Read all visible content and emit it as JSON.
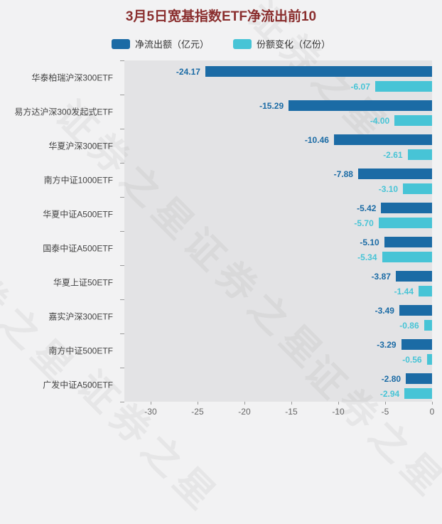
{
  "title": "3月5日宽基指数ETF净流出前10",
  "watermark": "证券之星",
  "legend": [
    {
      "label": "净流出额（亿元）",
      "color": "#1b6ba5"
    },
    {
      "label": "份额变化（亿份）",
      "color": "#47c4d6"
    }
  ],
  "chart_data": {
    "type": "bar",
    "orientation": "horizontal",
    "title": "3月5日宽基指数ETF净流出前10",
    "categories": [
      "华泰柏瑞沪深300ETF",
      "易方达沪深300发起式ETF",
      "华夏沪深300ETF",
      "南方中证1000ETF",
      "华夏中证A500ETF",
      "国泰中证A500ETF",
      "华夏上证50ETF",
      "嘉实沪深300ETF",
      "南方中证500ETF",
      "广发中证A500ETF"
    ],
    "series": [
      {
        "name": "净流出额（亿元）",
        "color": "#1b6ba5",
        "values": [
          -24.17,
          -15.29,
          -10.46,
          -7.88,
          -5.42,
          -5.1,
          -3.87,
          -3.49,
          -3.29,
          -2.8
        ]
      },
      {
        "name": "份额变化（亿份）",
        "color": "#47c4d6",
        "values": [
          -6.07,
          -4.0,
          -2.61,
          -3.1,
          -5.7,
          -5.34,
          -1.44,
          -0.86,
          -0.56,
          -2.94
        ]
      }
    ],
    "x_ticks": [
      -30,
      -25,
      -20,
      -15,
      -10,
      -5,
      0
    ],
    "xlim": [
      -32.8,
      0
    ],
    "grid": false,
    "legend_position": "top"
  }
}
